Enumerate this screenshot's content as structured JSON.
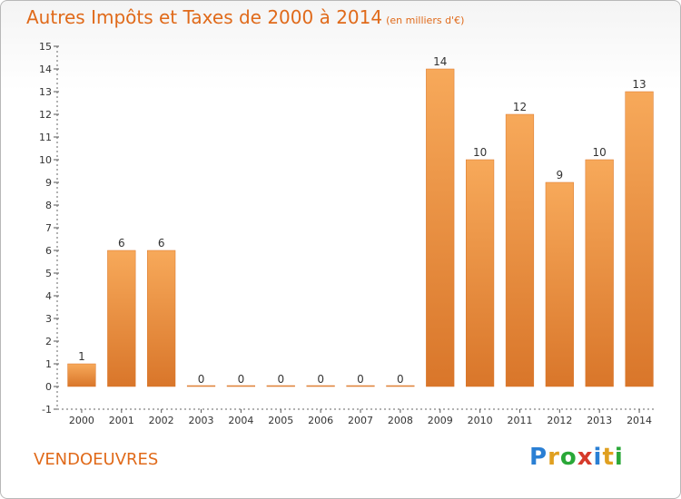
{
  "header": {
    "title": "Autres Impôts et Taxes de 2000 à 2014",
    "subtitle": "(en milliers d'€)"
  },
  "footer": {
    "commune": "VENDOEUVRES",
    "logo_letters": [
      "P",
      "r",
      "o",
      "x",
      "i",
      "t",
      "i"
    ],
    "logo_colors": [
      "#2a7fd4",
      "#e0a020",
      "#2aa838",
      "#d63a2a",
      "#2a7fd4",
      "#e0a020",
      "#2aa838"
    ]
  },
  "colors": {
    "bar_light": "#f7a95a",
    "bar_dark": "#d9762a",
    "title": "#e06a1a"
  },
  "chart_data": {
    "type": "bar",
    "categories": [
      "2000",
      "2001",
      "2002",
      "2003",
      "2004",
      "2005",
      "2006",
      "2007",
      "2008",
      "2009",
      "2010",
      "2011",
      "2012",
      "2013",
      "2014"
    ],
    "values": [
      1,
      6,
      6,
      0,
      0,
      0,
      0,
      0,
      0,
      14,
      10,
      12,
      9,
      10,
      13
    ],
    "data_labels": [
      "1",
      "6",
      "6",
      "0",
      "0",
      "0",
      "0",
      "0",
      "0",
      "14",
      "10",
      "12",
      "9",
      "10",
      "13"
    ],
    "ylim": [
      -1,
      15
    ],
    "yticks": [
      "-1",
      "0",
      "1",
      "2",
      "3",
      "4",
      "5",
      "6",
      "7",
      "8",
      "9",
      "10",
      "11",
      "12",
      "13",
      "14",
      "15"
    ],
    "ytick_values": [
      -1,
      0,
      1,
      2,
      3,
      4,
      5,
      6,
      7,
      8,
      9,
      10,
      11,
      12,
      13,
      14,
      15
    ],
    "grid": false
  }
}
